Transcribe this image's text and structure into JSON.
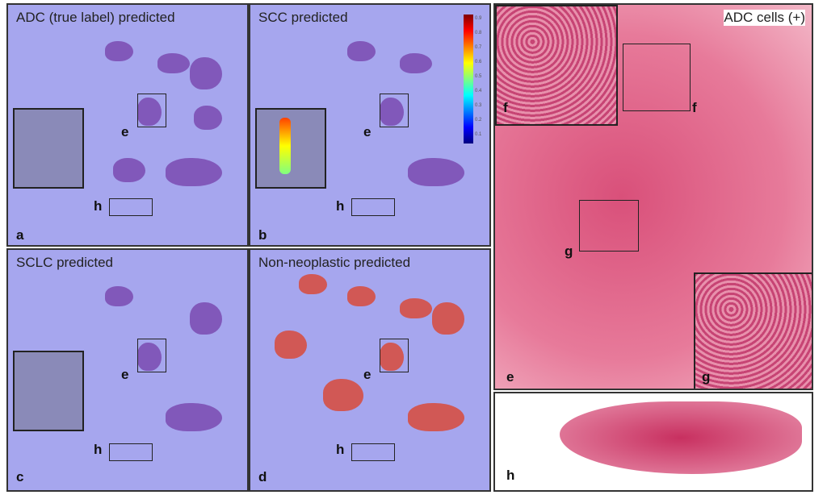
{
  "panels": {
    "a": {
      "title": "ADC (true label) predicted",
      "letter": "a"
    },
    "b": {
      "title": "SCC predicted",
      "letter": "b"
    },
    "c": {
      "title": "SCLC predicted",
      "letter": "c"
    },
    "d": {
      "title": "Non-neoplastic predicted",
      "letter": "d"
    },
    "main": {
      "title": "ADC cells (+)",
      "letter": "e"
    },
    "h": {
      "letter": "h"
    }
  },
  "markers": {
    "e": "e",
    "f": "f",
    "g": "g",
    "h": "h"
  },
  "colorbar": {
    "ticks": [
      "0.9",
      "0.8",
      "0.7",
      "0.6",
      "0.5",
      "0.4",
      "0.3",
      "0.2",
      "0.1"
    ]
  },
  "colors": {
    "background_blue": "#a6a6ee",
    "tissue": "#7a4ab0",
    "nonneo": "#d84a3a",
    "he": "#e06a90"
  }
}
